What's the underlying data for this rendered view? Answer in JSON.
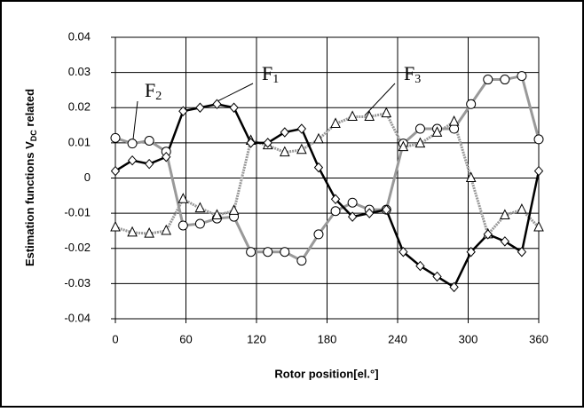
{
  "chart_data": {
    "type": "line",
    "ylabel": [
      "Estimation functions  V",
      "DC",
      " related"
    ],
    "xlabel": "Rotor position[el.°]",
    "x": [
      0,
      14.4,
      28.8,
      43.2,
      57.6,
      72,
      86.4,
      100.8,
      115.2,
      129.6,
      144,
      158.4,
      172.8,
      187.2,
      201.6,
      216,
      230.4,
      244.8,
      259.2,
      273.6,
      288,
      302.4,
      316.8,
      331.2,
      345.6,
      360
    ],
    "series": [
      {
        "name": "F1",
        "color": "#000000",
        "marker": "diamond",
        "dash": "none",
        "values": [
          0.002,
          0.005,
          0.004,
          0.006,
          0.019,
          0.02,
          0.021,
          0.02,
          0.01,
          0.01,
          0.013,
          0.014,
          0.003,
          -0.006,
          -0.011,
          -0.01,
          -0.009,
          -0.021,
          -0.025,
          -0.028,
          -0.031,
          -0.021,
          -0.016,
          -0.018,
          -0.021,
          0.002
        ]
      },
      {
        "name": "F2",
        "color": "#999999",
        "marker": "circle",
        "dash": "none",
        "values": [
          0.0114,
          0.0098,
          0.0106,
          0.0075,
          -0.0135,
          -0.013,
          -0.0115,
          -0.011,
          -0.021,
          -0.021,
          -0.021,
          -0.0235,
          -0.016,
          -0.0094,
          -0.007,
          -0.009,
          -0.009,
          0.0098,
          0.014,
          0.014,
          0.014,
          0.021,
          0.028,
          0.028,
          0.029,
          0.011
        ]
      },
      {
        "name": "F3",
        "color": "#999999",
        "marker": "triangle",
        "dash": "2 1",
        "values": [
          -0.014,
          -0.0155,
          -0.0158,
          -0.015,
          -0.006,
          -0.0086,
          -0.0106,
          -0.0093,
          0.0106,
          0.0093,
          0.0073,
          0.008,
          0.011,
          0.0154,
          0.0174,
          0.0174,
          0.0184,
          0.0088,
          0.0098,
          0.0129,
          0.016,
          0.0,
          -0.016,
          -0.0106,
          -0.009,
          -0.014
        ]
      }
    ],
    "xlim": [
      0,
      360
    ],
    "xticks": [
      0,
      60,
      120,
      180,
      240,
      300,
      360
    ],
    "ylim": [
      -0.04,
      0.04
    ],
    "yticks": [
      -0.04,
      -0.03,
      -0.02,
      -0.01,
      0,
      0.01,
      0.02,
      0.03,
      0.04
    ],
    "grid": true
  }
}
